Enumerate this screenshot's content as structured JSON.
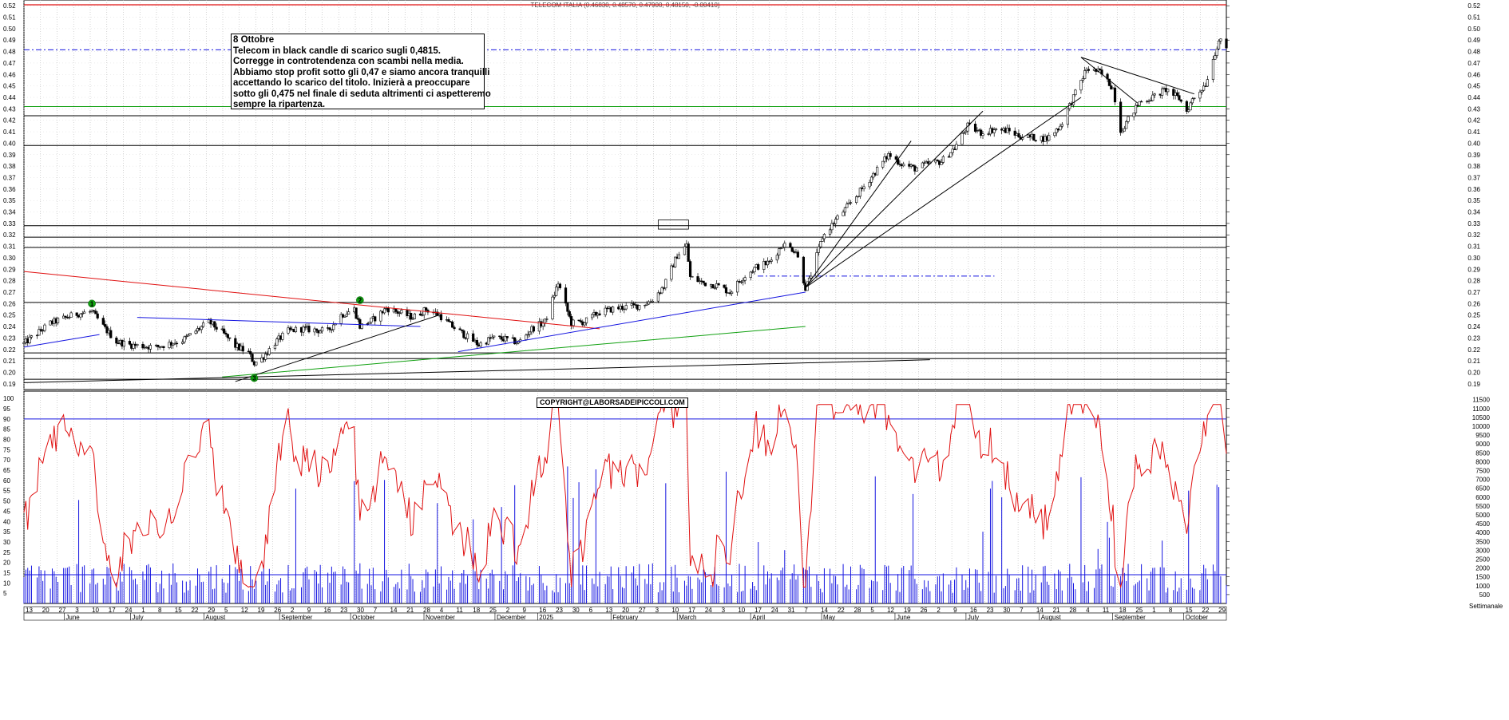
{
  "chart_data": [
    {
      "type": "candlestick",
      "title": "TELECOM ITALIA (0.46830, 0.48570, 0.47900, 0.48150, -0.00410)",
      "ylim": [
        0.185,
        0.525
      ],
      "y_ticks": [
        "0.52",
        "0.51",
        "0.50",
        "0.49",
        "0.48",
        "0.47",
        "0.46",
        "0.45",
        "0.44",
        "0.43",
        "0.42",
        "0.41",
        "0.40",
        "0.39",
        "0.38",
        "0.37",
        "0.36",
        "0.35",
        "0.34",
        "0.33",
        "0.32",
        "0.31",
        "0.30",
        "0.29",
        "0.28",
        "0.27",
        "0.26",
        "0.25",
        "0.24",
        "0.23",
        "0.22",
        "0.21",
        "0.20",
        "0.19"
      ],
      "x_range_days": [
        0,
        508
      ],
      "close_anchors": [
        [
          0,
          0.225
        ],
        [
          14,
          0.243
        ],
        [
          28,
          0.251
        ],
        [
          36,
          0.253
        ],
        [
          42,
          0.24
        ],
        [
          49,
          0.227
        ],
        [
          56,
          0.224
        ],
        [
          70,
          0.222
        ],
        [
          84,
          0.228
        ],
        [
          91,
          0.236
        ],
        [
          98,
          0.244
        ],
        [
          105,
          0.235
        ],
        [
          112,
          0.223
        ],
        [
          119,
          0.217
        ],
        [
          122,
          0.208
        ],
        [
          126,
          0.212
        ],
        [
          133,
          0.226
        ],
        [
          140,
          0.236
        ],
        [
          147,
          0.238
        ],
        [
          154,
          0.237
        ],
        [
          161,
          0.236
        ],
        [
          168,
          0.25
        ],
        [
          175,
          0.255
        ],
        [
          178,
          0.24
        ],
        [
          185,
          0.246
        ],
        [
          192,
          0.256
        ],
        [
          199,
          0.252
        ],
        [
          206,
          0.248
        ],
        [
          213,
          0.255
        ],
        [
          220,
          0.25
        ],
        [
          227,
          0.24
        ],
        [
          234,
          0.232
        ],
        [
          241,
          0.224
        ],
        [
          248,
          0.23
        ],
        [
          255,
          0.229
        ],
        [
          262,
          0.226
        ],
        [
          269,
          0.238
        ],
        [
          276,
          0.244
        ],
        [
          283,
          0.278
        ],
        [
          290,
          0.243
        ],
        [
          297,
          0.244
        ],
        [
          304,
          0.252
        ],
        [
          311,
          0.255
        ],
        [
          318,
          0.257
        ],
        [
          325,
          0.258
        ],
        [
          332,
          0.262
        ],
        [
          339,
          0.275
        ],
        [
          346,
          0.302
        ],
        [
          351,
          0.311
        ],
        [
          353,
          0.283
        ],
        [
          360,
          0.278
        ],
        [
          367,
          0.276
        ],
        [
          374,
          0.27
        ],
        [
          381,
          0.283
        ],
        [
          388,
          0.292
        ],
        [
          395,
          0.296
        ],
        [
          402,
          0.312
        ],
        [
          409,
          0.306
        ],
        [
          414,
          0.274
        ],
        [
          416,
          0.28
        ],
        [
          423,
          0.318
        ],
        [
          430,
          0.333
        ],
        [
          437,
          0.346
        ],
        [
          444,
          0.36
        ],
        [
          451,
          0.375
        ],
        [
          458,
          0.39
        ],
        [
          465,
          0.382
        ],
        [
          472,
          0.378
        ],
        [
          479,
          0.382
        ],
        [
          486,
          0.384
        ],
        [
          493,
          0.396
        ],
        [
          500,
          0.415
        ],
        [
          507,
          0.409
        ],
        [
          514,
          0.412
        ],
        [
          521,
          0.411
        ],
        [
          528,
          0.406
        ],
        [
          535,
          0.405
        ],
        [
          542,
          0.404
        ],
        [
          549,
          0.415
        ],
        [
          556,
          0.44
        ],
        [
          563,
          0.465
        ],
        [
          570,
          0.462
        ],
        [
          577,
          0.448
        ],
        [
          581,
          0.411
        ],
        [
          584,
          0.418
        ],
        [
          591,
          0.436
        ],
        [
          598,
          0.44
        ],
        [
          605,
          0.447
        ],
        [
          612,
          0.439
        ],
        [
          616,
          0.428
        ],
        [
          619,
          0.438
        ],
        [
          626,
          0.452
        ],
        [
          633,
          0.49
        ],
        [
          637,
          0.482
        ]
      ],
      "horizontal_levels": [
        0.4815,
        0.432,
        0.424,
        0.398,
        0.328,
        0.318,
        0.309,
        0.261,
        0.217,
        0.212,
        0.194
      ],
      "trendlines": [
        {
          "color": "#e01010",
          "from": [
            0,
            0.288
          ],
          "to": [
            305,
            0.238
          ]
        },
        {
          "color": "#1515e0",
          "from": [
            0,
            0.222
          ],
          "to": [
            40,
            0.233
          ]
        },
        {
          "color": "#1515e0",
          "from": [
            60,
            0.248
          ],
          "to": [
            210,
            0.24
          ]
        },
        {
          "color": "#1515e0",
          "from": [
            230,
            0.218
          ],
          "to": [
            414,
            0.27
          ]
        },
        {
          "color": "#10a010",
          "from": [
            105,
            0.196
          ],
          "to": [
            414,
            0.24
          ]
        },
        {
          "color": "#000000",
          "from": [
            0,
            0.191
          ],
          "to": [
            480,
            0.211
          ]
        },
        {
          "color": "#000000",
          "from": [
            112,
            0.192
          ],
          "to": [
            220,
            0.25
          ]
        },
        {
          "color": "#000000",
          "from": [
            414,
            0.274
          ],
          "to": [
            470,
            0.402
          ]
        },
        {
          "color": "#000000",
          "from": [
            414,
            0.274
          ],
          "to": [
            508,
            0.428
          ]
        },
        {
          "color": "#000000",
          "from": [
            414,
            0.274
          ],
          "to": [
            560,
            0.44
          ]
        },
        {
          "color": "#000000",
          "from": [
            560,
            0.475
          ],
          "to": [
            620,
            0.443
          ]
        },
        {
          "color": "#000000",
          "from": [
            560,
            0.475
          ],
          "to": [
            590,
            0.435
          ]
        }
      ],
      "dashed_levels": [
        {
          "color": "#1515e0",
          "y": 0.4815,
          "from": 0,
          "to": 637
        },
        {
          "color": "#1515e0",
          "y": 0.284,
          "from": 310,
          "to": 410
        }
      ],
      "markers": [
        {
          "label": "1",
          "day": 36,
          "y": 0.26
        },
        {
          "label": "2",
          "day": 178,
          "y": 0.263
        },
        {
          "label": "3",
          "day": 122,
          "y": 0.195
        }
      ],
      "note": {
        "lines": [
          "8 Ottobre",
          "Telecom in black candle di scarico sugli 0,4815.",
          "Corregge in controtendenza con scambi nella media.",
          "Abbiamo stop profit sotto gli 0,47 e siamo ancora tranquilli",
          "accettando lo scarico del titolo. Inizierà a preoccupare",
          "sotto gli 0,475 nel finale di seduta altrimenti ci aspetteremo",
          "sempre la ripartenza."
        ]
      },
      "copyright": "COPYRIGHT@LABORSADEIPICCOLI.COM"
    },
    {
      "type": "oscillator+volume",
      "left_ticks": [
        "100",
        "95",
        "90",
        "85",
        "80",
        "75",
        "70",
        "65",
        "60",
        "55",
        "50",
        "45",
        "40",
        "35",
        "30",
        "25",
        "20",
        "15",
        "10",
        "5"
      ],
      "right_ticks": [
        "11500",
        "11000",
        "10500",
        "10000",
        "9500",
        "9000",
        "8500",
        "8000",
        "7500",
        "7000",
        "6500",
        "6000",
        "5500",
        "5000",
        "4500",
        "4000",
        "3500",
        "3000",
        "2500",
        "2000",
        "1500",
        "1000",
        "500"
      ],
      "oscillator_levels": [
        90,
        14
      ],
      "oscillator_ylim": [
        0,
        102
      ],
      "volume_ylim": [
        0,
        11800
      ]
    }
  ],
  "x_axis": {
    "day_labels": [
      "13",
      "20",
      "27",
      "3",
      "10",
      "17",
      "24",
      "1",
      "8",
      "15",
      "22",
      "29",
      "5",
      "12",
      "19",
      "26",
      "2",
      "9",
      "16",
      "23",
      "30",
      "7",
      "14",
      "21",
      "28",
      "4",
      "11",
      "18",
      "25",
      "2",
      "9",
      "16",
      "23",
      "30",
      "6",
      "13",
      "20",
      "27",
      "3",
      "10",
      "17",
      "24",
      "3",
      "10",
      "17",
      "24",
      "31",
      "7",
      "14",
      "22",
      "28",
      "5",
      "12",
      "19",
      "26",
      "2",
      "9",
      "16",
      "23",
      "30",
      "7",
      "14",
      "21",
      "28",
      "4",
      "11",
      "18",
      "25",
      "1",
      "8",
      "15",
      "22",
      "29",
      "6",
      "13",
      "20"
    ],
    "months": [
      {
        "label": "June",
        "day": 17
      },
      {
        "label": "July",
        "day": 45
      },
      {
        "label": "August",
        "day": 76
      },
      {
        "label": "September",
        "day": 108
      },
      {
        "label": "October",
        "day": 138
      },
      {
        "label": "November",
        "day": 169
      },
      {
        "label": "December",
        "day": 199
      },
      {
        "label": "2025",
        "day": 217
      },
      {
        "label": "February",
        "day": 248
      },
      {
        "label": "March",
        "day": 276
      },
      {
        "label": "April",
        "day": 307
      },
      {
        "label": "May",
        "day": 337
      },
      {
        "label": "June",
        "day": 368
      },
      {
        "label": "July",
        "day": 398
      },
      {
        "label": "August",
        "day": 429
      },
      {
        "label": "September",
        "day": 460
      },
      {
        "label": "October",
        "day": 490
      }
    ],
    "corner_label": "Settimanale"
  }
}
